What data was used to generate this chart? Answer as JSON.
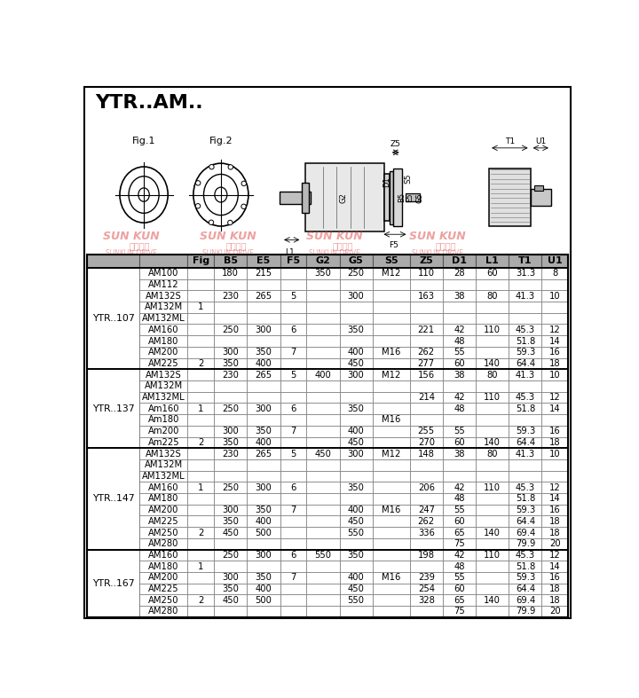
{
  "title": "YTR..AM..",
  "header_labels": [
    "",
    "",
    "Fig",
    "B5",
    "E5",
    "F5",
    "G2",
    "G5",
    "S5",
    "Z5",
    "D1",
    "L1",
    "T1",
    "U1"
  ],
  "col_ratios": [
    0.088,
    0.08,
    0.044,
    0.055,
    0.055,
    0.044,
    0.055,
    0.055,
    0.062,
    0.055,
    0.055,
    0.055,
    0.055,
    0.044
  ],
  "sections": [
    {
      "label": "YTR..107",
      "rows": [
        [
          "AM100",
          "",
          "180",
          "215",
          "",
          "350",
          "250",
          "M12",
          "110",
          "28",
          "60",
          "31.3",
          "8"
        ],
        [
          "AM112",
          "",
          "",
          "",
          "",
          "",
          "",
          "",
          "",
          "",
          "",
          "",
          ""
        ],
        [
          "AM132S",
          "",
          "230",
          "265",
          "5",
          "",
          "300",
          "",
          "163",
          "38",
          "80",
          "41.3",
          "10"
        ],
        [
          "AM132M",
          "1",
          "",
          "",
          "",
          "",
          "",
          "",
          "",
          "",
          "",
          "",
          ""
        ],
        [
          "AM132ML",
          "",
          "",
          "",
          "",
          "",
          "",
          "",
          "",
          "",
          "",
          "",
          ""
        ],
        [
          "AM160",
          "",
          "250",
          "300",
          "6",
          "",
          "350",
          "",
          "221",
          "42",
          "110",
          "45.3",
          "12"
        ],
        [
          "AM180",
          "",
          "",
          "",
          "",
          "",
          "",
          "",
          "",
          "48",
          "",
          "51.8",
          "14"
        ],
        [
          "AM200",
          "",
          "300",
          "350",
          "7",
          "",
          "400",
          "M16",
          "262",
          "55",
          "",
          "59.3",
          "16"
        ],
        [
          "AM225",
          "2",
          "350",
          "400",
          "",
          "",
          "450",
          "",
          "277",
          "60",
          "140",
          "64.4",
          "18"
        ]
      ]
    },
    {
      "label": "YTR..137",
      "rows": [
        [
          "AM132S",
          "",
          "230",
          "265",
          "5",
          "400",
          "300",
          "M12",
          "156",
          "38",
          "80",
          "41.3",
          "10"
        ],
        [
          "AM132M",
          "",
          "",
          "",
          "",
          "",
          "",
          "",
          "",
          "",
          "",
          "",
          ""
        ],
        [
          "AM132ML",
          "",
          "",
          "",
          "",
          "",
          "",
          "",
          "214",
          "42",
          "110",
          "45.3",
          "12"
        ],
        [
          "Am160",
          "1",
          "250",
          "300",
          "6",
          "",
          "350",
          "",
          "",
          "48",
          "",
          "51.8",
          "14"
        ],
        [
          "Am180",
          "",
          "",
          "",
          "",
          "",
          "",
          "M16",
          "",
          "",
          "",
          "",
          ""
        ],
        [
          "Am200",
          "",
          "300",
          "350",
          "7",
          "",
          "400",
          "",
          "255",
          "55",
          "",
          "59.3",
          "16"
        ],
        [
          "Am225",
          "2",
          "350",
          "400",
          "",
          "",
          "450",
          "",
          "270",
          "60",
          "140",
          "64.4",
          "18"
        ]
      ]
    },
    {
      "label": "YTR..147",
      "rows": [
        [
          "AM132S",
          "",
          "230",
          "265",
          "5",
          "450",
          "300",
          "M12",
          "148",
          "38",
          "80",
          "41.3",
          "10"
        ],
        [
          "AM132M",
          "",
          "",
          "",
          "",
          "",
          "",
          "",
          "",
          "",
          "",
          "",
          ""
        ],
        [
          "AM132ML",
          "",
          "",
          "",
          "",
          "",
          "",
          "",
          "",
          "",
          "",
          "",
          ""
        ],
        [
          "AM160",
          "1",
          "250",
          "300",
          "6",
          "",
          "350",
          "",
          "206",
          "42",
          "110",
          "45.3",
          "12"
        ],
        [
          "AM180",
          "",
          "",
          "",
          "",
          "",
          "",
          "",
          "",
          "48",
          "",
          "51.8",
          "14"
        ],
        [
          "AM200",
          "",
          "300",
          "350",
          "7",
          "",
          "400",
          "M16",
          "247",
          "55",
          "",
          "59.3",
          "16"
        ],
        [
          "AM225",
          "",
          "350",
          "400",
          "",
          "",
          "450",
          "",
          "262",
          "60",
          "",
          "64.4",
          "18"
        ],
        [
          "AM250",
          "2",
          "450",
          "500",
          "",
          "",
          "550",
          "",
          "336",
          "65",
          "140",
          "69.4",
          "18"
        ],
        [
          "AM280",
          "",
          "",
          "",
          "",
          "",
          "",
          "",
          "",
          "75",
          "",
          "79.9",
          "20"
        ]
      ]
    },
    {
      "label": "YTR..167",
      "rows": [
        [
          "AM160",
          "",
          "250",
          "300",
          "6",
          "550",
          "350",
          "",
          "198",
          "42",
          "110",
          "45.3",
          "12"
        ],
        [
          "AM180",
          "1",
          "",
          "",
          "",
          "",
          "",
          "",
          "",
          "48",
          "",
          "51.8",
          "14"
        ],
        [
          "AM200",
          "",
          "300",
          "350",
          "7",
          "",
          "400",
          "M16",
          "239",
          "55",
          "",
          "59.3",
          "16"
        ],
        [
          "AM225",
          "",
          "350",
          "400",
          "",
          "",
          "450",
          "",
          "254",
          "60",
          "",
          "64.4",
          "18"
        ],
        [
          "AM250",
          "2",
          "450",
          "500",
          "",
          "",
          "550",
          "",
          "328",
          "65",
          "140",
          "69.4",
          "18"
        ],
        [
          "AM280",
          "",
          "",
          "",
          "",
          "",
          "",
          "",
          "",
          "75",
          "",
          "79.9",
          "20"
        ]
      ]
    }
  ],
  "bg_color": "#ffffff",
  "cell_fs": 7.2,
  "header_fs": 8.0,
  "title_fs": 16,
  "watermark_texts": [
    "SUNKUN上坤传动",
    "SUNKUN上坤传动",
    "SUNKUN上坤传动",
    "SUNKUN上坤传动"
  ],
  "watermark_color": "#dd4444"
}
